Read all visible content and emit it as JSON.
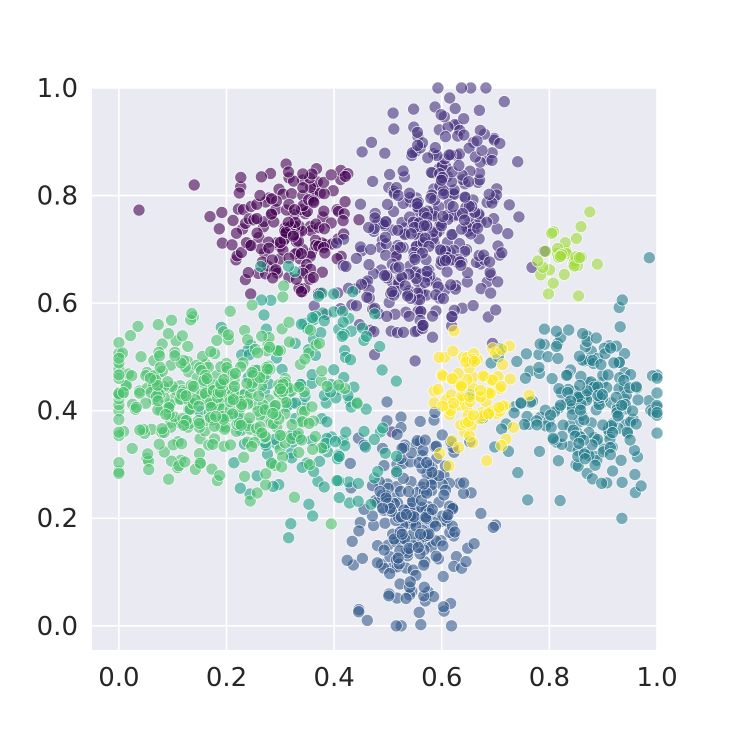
{
  "chart_data": {
    "type": "scatter",
    "title": "",
    "xlabel": "",
    "ylabel": "",
    "xlim": [
      -0.05,
      1.0
    ],
    "ylim": [
      -0.045,
      1.0
    ],
    "xticks": [
      "0.0",
      "0.2",
      "0.4",
      "0.6",
      "0.8",
      "1.0"
    ],
    "yticks": [
      "0.0",
      "0.2",
      "0.4",
      "0.6",
      "0.8",
      "1.0"
    ],
    "grid": true,
    "legend": "none",
    "colormap": "viridis",
    "point_alpha": 0.6,
    "background_color": "#eaeaf2",
    "clusters": [
      {
        "label": 0,
        "color": "#440154",
        "center": [
          0.32,
          0.74
        ],
        "spread": [
          0.07,
          0.07
        ],
        "count": 170
      },
      {
        "label": 1,
        "color": "#46327e",
        "center": [
          0.6,
          0.78
        ],
        "spread": [
          0.06,
          0.1
        ],
        "count": 260
      },
      {
        "label": 2,
        "color": "#46327e",
        "center": [
          0.55,
          0.63
        ],
        "spread": [
          0.08,
          0.05
        ],
        "count": 120
      },
      {
        "label": 3,
        "color": "#365c8d",
        "center": [
          0.55,
          0.2
        ],
        "spread": [
          0.05,
          0.09
        ],
        "count": 230
      },
      {
        "label": 4,
        "color": "#277f8e",
        "center": [
          0.87,
          0.41
        ],
        "spread": [
          0.07,
          0.08
        ],
        "count": 230
      },
      {
        "label": 5,
        "color": "#1fa187",
        "center": [
          0.37,
          0.42
        ],
        "spread": [
          0.09,
          0.12
        ],
        "count": 150
      },
      {
        "label": 6,
        "color": "#4ac16d",
        "center": [
          0.12,
          0.43
        ],
        "spread": [
          0.08,
          0.06
        ],
        "count": 230
      },
      {
        "label": 6,
        "color": "#4ac16d",
        "center": [
          0.27,
          0.42
        ],
        "spread": [
          0.06,
          0.08
        ],
        "count": 160
      },
      {
        "label": 7,
        "color": "#a0da39",
        "center": [
          0.83,
          0.67
        ],
        "spread": [
          0.03,
          0.04
        ],
        "count": 30
      },
      {
        "label": 8,
        "color": "#fde725",
        "center": [
          0.66,
          0.43
        ],
        "spread": [
          0.04,
          0.05
        ],
        "count": 90
      }
    ]
  }
}
